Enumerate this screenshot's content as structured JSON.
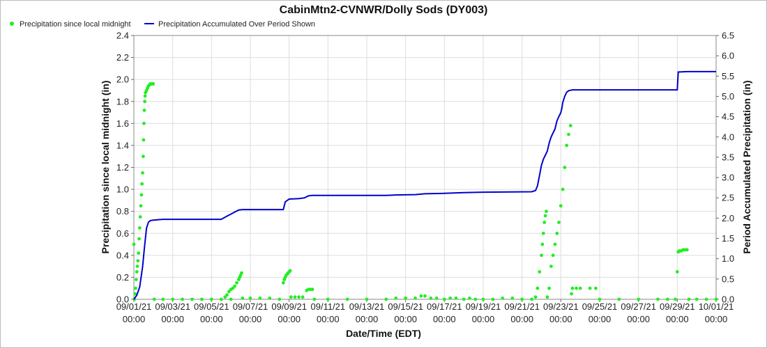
{
  "chart_data": {
    "type": "scatter+line",
    "title": "CabinMtn2-CVNWR/Dolly Sods (DY003)",
    "xlabel": "Date/Time (EDT)",
    "ylabel_left": "Precipitation since local midnight (in)",
    "ylabel_right": "Period Accumulated Precipitation (in)",
    "legend_position": "top-left",
    "grid": true,
    "colors": {
      "points": "#22ee22",
      "line": "#0000cc"
    },
    "x_start": "09/01/21 00:00",
    "x_end": "10/01/21 00:00",
    "x_range_days": [
      0,
      30
    ],
    "y_left_range": [
      0,
      2.4
    ],
    "y_right_range": [
      0,
      6.5
    ],
    "x_ticks": [
      {
        "date": "09/01/21",
        "time": "00:00"
      },
      {
        "date": "09/03/21",
        "time": "00:00"
      },
      {
        "date": "09/05/21",
        "time": "00:00"
      },
      {
        "date": "09/07/21",
        "time": "00:00"
      },
      {
        "date": "09/09/21",
        "time": "00:00"
      },
      {
        "date": "09/11/21",
        "time": "00:00"
      },
      {
        "date": "09/13/21",
        "time": "00:00"
      },
      {
        "date": "09/15/21",
        "time": "00:00"
      },
      {
        "date": "09/17/21",
        "time": "00:00"
      },
      {
        "date": "09/19/21",
        "time": "00:00"
      },
      {
        "date": "09/21/21",
        "time": "00:00"
      },
      {
        "date": "09/23/21",
        "time": "00:00"
      },
      {
        "date": "09/25/21",
        "time": "00:00"
      },
      {
        "date": "09/27/21",
        "time": "00:00"
      },
      {
        "date": "09/29/21",
        "time": "00:00"
      },
      {
        "date": "10/01/21",
        "time": "00:00"
      }
    ],
    "y_left_ticks": [
      "0.0",
      "0.2",
      "0.4",
      "0.6",
      "0.8",
      "1.0",
      "1.2",
      "1.4",
      "1.6",
      "1.8",
      "2.0",
      "2.2",
      "2.4"
    ],
    "y_right_ticks": [
      "0.0",
      "0.5",
      "1.0",
      "1.5",
      "2.0",
      "2.5",
      "3.0",
      "3.5",
      "4.0",
      "4.5",
      "5.0",
      "5.5",
      "6.0",
      "6.5"
    ],
    "series": [
      {
        "name": "Precipitation since local midnight",
        "kind": "points",
        "axis": "left",
        "points": [
          [
            0.0,
            0.5
          ],
          [
            0.03,
            0.0
          ],
          [
            0.06,
            0.05
          ],
          [
            0.09,
            0.1
          ],
          [
            0.12,
            0.18
          ],
          [
            0.15,
            0.25
          ],
          [
            0.18,
            0.3
          ],
          [
            0.21,
            0.35
          ],
          [
            0.24,
            0.42
          ],
          [
            0.27,
            0.55
          ],
          [
            0.3,
            0.65
          ],
          [
            0.33,
            0.75
          ],
          [
            0.36,
            0.85
          ],
          [
            0.39,
            0.95
          ],
          [
            0.42,
            1.05
          ],
          [
            0.45,
            1.15
          ],
          [
            0.48,
            1.3
          ],
          [
            0.5,
            1.45
          ],
          [
            0.52,
            1.6
          ],
          [
            0.54,
            1.72
          ],
          [
            0.56,
            1.8
          ],
          [
            0.58,
            1.85
          ],
          [
            0.6,
            1.88
          ],
          [
            0.65,
            1.9
          ],
          [
            0.7,
            1.92
          ],
          [
            0.75,
            1.94
          ],
          [
            0.8,
            1.95
          ],
          [
            0.85,
            1.96
          ],
          [
            0.9,
            1.96
          ],
          [
            0.95,
            1.96
          ],
          [
            1.0,
            1.96
          ],
          [
            1.05,
            0.0
          ],
          [
            1.5,
            0.0
          ],
          [
            2.0,
            0.0
          ],
          [
            2.5,
            0.0
          ],
          [
            3.0,
            0.0
          ],
          [
            3.5,
            0.0
          ],
          [
            4.0,
            0.0
          ],
          [
            4.5,
            0.0
          ],
          [
            5.0,
            0.0
          ],
          [
            4.7,
            0.02
          ],
          [
            4.8,
            0.04
          ],
          [
            4.9,
            0.07
          ],
          [
            5.0,
            0.09
          ],
          [
            5.1,
            0.1
          ],
          [
            5.2,
            0.12
          ],
          [
            5.3,
            0.15
          ],
          [
            5.4,
            0.18
          ],
          [
            5.45,
            0.2
          ],
          [
            5.5,
            0.22
          ],
          [
            5.55,
            0.24
          ],
          [
            5.6,
            0.01
          ],
          [
            6.0,
            0.01
          ],
          [
            6.5,
            0.01
          ],
          [
            7.0,
            0.01
          ],
          [
            7.5,
            0.0
          ],
          [
            7.7,
            0.15
          ],
          [
            7.75,
            0.18
          ],
          [
            7.8,
            0.2
          ],
          [
            7.85,
            0.22
          ],
          [
            7.9,
            0.23
          ],
          [
            7.95,
            0.24
          ],
          [
            8.0,
            0.25
          ],
          [
            8.05,
            0.26
          ],
          [
            8.1,
            0.02
          ],
          [
            8.3,
            0.02
          ],
          [
            8.5,
            0.02
          ],
          [
            8.7,
            0.02
          ],
          [
            8.9,
            0.08
          ],
          [
            9.0,
            0.09
          ],
          [
            9.1,
            0.09
          ],
          [
            9.2,
            0.09
          ],
          [
            9.3,
            0.0
          ],
          [
            10.0,
            0.0
          ],
          [
            11.0,
            0.0
          ],
          [
            12.0,
            0.0
          ],
          [
            13.0,
            0.0
          ],
          [
            13.5,
            0.01
          ],
          [
            14.0,
            0.01
          ],
          [
            14.5,
            0.01
          ],
          [
            14.8,
            0.03
          ],
          [
            15.0,
            0.03
          ],
          [
            15.3,
            0.01
          ],
          [
            15.6,
            0.01
          ],
          [
            16.0,
            0.0
          ],
          [
            16.3,
            0.01
          ],
          [
            16.6,
            0.01
          ],
          [
            17.0,
            0.0
          ],
          [
            17.3,
            0.01
          ],
          [
            17.6,
            0.0
          ],
          [
            18.0,
            0.0
          ],
          [
            18.5,
            0.0
          ],
          [
            19.0,
            0.01
          ],
          [
            19.5,
            0.01
          ],
          [
            20.0,
            0.0
          ],
          [
            20.5,
            0.0
          ],
          [
            20.7,
            0.02
          ],
          [
            20.8,
            0.1
          ],
          [
            20.9,
            0.25
          ],
          [
            21.0,
            0.4
          ],
          [
            21.05,
            0.5
          ],
          [
            21.1,
            0.6
          ],
          [
            21.15,
            0.7
          ],
          [
            21.2,
            0.76
          ],
          [
            21.25,
            0.8
          ],
          [
            21.3,
            0.02
          ],
          [
            21.4,
            0.1
          ],
          [
            21.5,
            0.3
          ],
          [
            21.6,
            0.4
          ],
          [
            21.7,
            0.5
          ],
          [
            21.8,
            0.6
          ],
          [
            21.9,
            0.7
          ],
          [
            22.0,
            0.85
          ],
          [
            22.1,
            1.0
          ],
          [
            22.2,
            1.2
          ],
          [
            22.3,
            1.4
          ],
          [
            22.4,
            1.5
          ],
          [
            22.5,
            1.58
          ],
          [
            22.55,
            0.05
          ],
          [
            22.6,
            0.1
          ],
          [
            22.8,
            0.1
          ],
          [
            23.0,
            0.1
          ],
          [
            23.5,
            0.1
          ],
          [
            23.8,
            0.1
          ],
          [
            24.0,
            0.0
          ],
          [
            25.0,
            0.0
          ],
          [
            26.0,
            0.0
          ],
          [
            27.0,
            0.0
          ],
          [
            27.5,
            0.0
          ],
          [
            27.9,
            0.0
          ],
          [
            28.0,
            0.25
          ],
          [
            28.05,
            0.43
          ],
          [
            28.1,
            0.44
          ],
          [
            28.2,
            0.44
          ],
          [
            28.3,
            0.45
          ],
          [
            28.4,
            0.45
          ],
          [
            28.5,
            0.45
          ],
          [
            28.6,
            0.0
          ],
          [
            29.0,
            0.0
          ],
          [
            29.5,
            0.0
          ],
          [
            30.0,
            0.0
          ]
        ]
      },
      {
        "name": "Precipitation Accumulated Over Period Shown",
        "kind": "line",
        "axis": "right",
        "points": [
          [
            0.0,
            0.0
          ],
          [
            0.15,
            0.1
          ],
          [
            0.3,
            0.3
          ],
          [
            0.45,
            0.8
          ],
          [
            0.55,
            1.3
          ],
          [
            0.65,
            1.75
          ],
          [
            0.75,
            1.9
          ],
          [
            0.85,
            1.94
          ],
          [
            1.0,
            1.95
          ],
          [
            1.5,
            1.97
          ],
          [
            4.5,
            1.97
          ],
          [
            4.8,
            2.05
          ],
          [
            5.0,
            2.1
          ],
          [
            5.2,
            2.15
          ],
          [
            5.4,
            2.2
          ],
          [
            5.6,
            2.21
          ],
          [
            7.7,
            2.21
          ],
          [
            7.8,
            2.4
          ],
          [
            8.0,
            2.47
          ],
          [
            8.5,
            2.48
          ],
          [
            8.8,
            2.5
          ],
          [
            9.0,
            2.55
          ],
          [
            9.2,
            2.56
          ],
          [
            13.0,
            2.56
          ],
          [
            13.5,
            2.57
          ],
          [
            14.5,
            2.58
          ],
          [
            15.0,
            2.6
          ],
          [
            16.0,
            2.61
          ],
          [
            17.0,
            2.63
          ],
          [
            18.0,
            2.64
          ],
          [
            20.5,
            2.65
          ],
          [
            20.7,
            2.68
          ],
          [
            20.8,
            2.8
          ],
          [
            20.9,
            3.05
          ],
          [
            21.0,
            3.3
          ],
          [
            21.1,
            3.45
          ],
          [
            21.3,
            3.65
          ],
          [
            21.4,
            3.85
          ],
          [
            21.5,
            4.0
          ],
          [
            21.6,
            4.1
          ],
          [
            21.7,
            4.2
          ],
          [
            21.8,
            4.4
          ],
          [
            21.9,
            4.5
          ],
          [
            22.0,
            4.6
          ],
          [
            22.05,
            4.7
          ],
          [
            22.1,
            4.85
          ],
          [
            22.2,
            5.0
          ],
          [
            22.3,
            5.1
          ],
          [
            22.4,
            5.14
          ],
          [
            22.5,
            5.15
          ],
          [
            22.6,
            5.16
          ],
          [
            28.0,
            5.16
          ],
          [
            28.05,
            5.6
          ],
          [
            28.5,
            5.61
          ],
          [
            29.0,
            5.61
          ],
          [
            30.0,
            5.61
          ]
        ]
      }
    ]
  }
}
